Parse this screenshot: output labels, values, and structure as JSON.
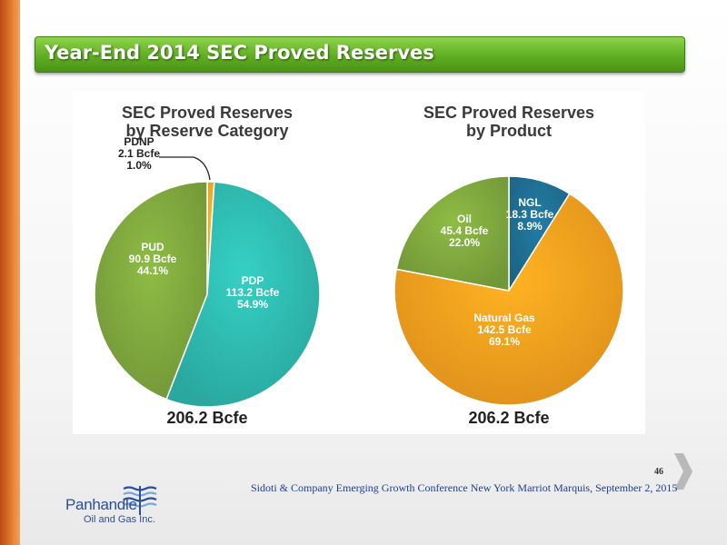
{
  "slide": {
    "title": "Year-End 2014 SEC Proved Reserves",
    "footer": "Sidoti & Company Emerging Growth Conference New York Marriot Marquis, September 2, 2015",
    "page_number": "46"
  },
  "logo": {
    "name": "Panhandle",
    "sub": "Oil and Gas Inc."
  },
  "icons": {
    "next": "chevron-right-icon",
    "logo_mark": "wave-lines-icon"
  },
  "colors": {
    "title_green": "#5fae22",
    "left_bar": "#e27a2c",
    "footer_text": "#1f3e8c",
    "pdp": "#2fbab0",
    "pud": "#7fa83e",
    "pdnp": "#f7a823",
    "natural_gas": "#f7a01e",
    "oil": "#7fa83e",
    "ngl": "#1f6f93"
  },
  "chart_data": [
    {
      "type": "pie",
      "title": "SEC Proved Reserves\nby Reserve Category",
      "total": "206.2 Bcfe",
      "slices": [
        {
          "label": "PDNP",
          "value": 2.1,
          "value_text": "2.1 Bcfe",
          "percent": 1.0,
          "percent_text": "1.0%",
          "color": "#f7a823"
        },
        {
          "label": "PDP",
          "value": 113.2,
          "value_text": "113.2 Bcfe",
          "percent": 54.9,
          "percent_text": "54.9%",
          "color": "#2fbab0"
        },
        {
          "label": "PUD",
          "value": 90.9,
          "value_text": "90.9 Bcfe",
          "percent": 44.1,
          "percent_text": "44.1%",
          "color": "#7fa83e"
        }
      ]
    },
    {
      "type": "pie",
      "title": "SEC Proved Reserves\nby Product",
      "total": "206.2 Bcfe",
      "slices": [
        {
          "label": "NGL",
          "value": 18.3,
          "value_text": "18.3 Bcfe",
          "percent": 8.9,
          "percent_text": "8.9%",
          "color": "#1f6f93"
        },
        {
          "label": "Natural Gas",
          "value": 142.5,
          "value_text": "142.5 Bcfe",
          "percent": 69.1,
          "percent_text": "69.1%",
          "color": "#f7a01e"
        },
        {
          "label": "Oil",
          "value": 45.4,
          "value_text": "45.4 Bcfe",
          "percent": 22.0,
          "percent_text": "22.0%",
          "color": "#7fa83e"
        }
      ]
    }
  ]
}
